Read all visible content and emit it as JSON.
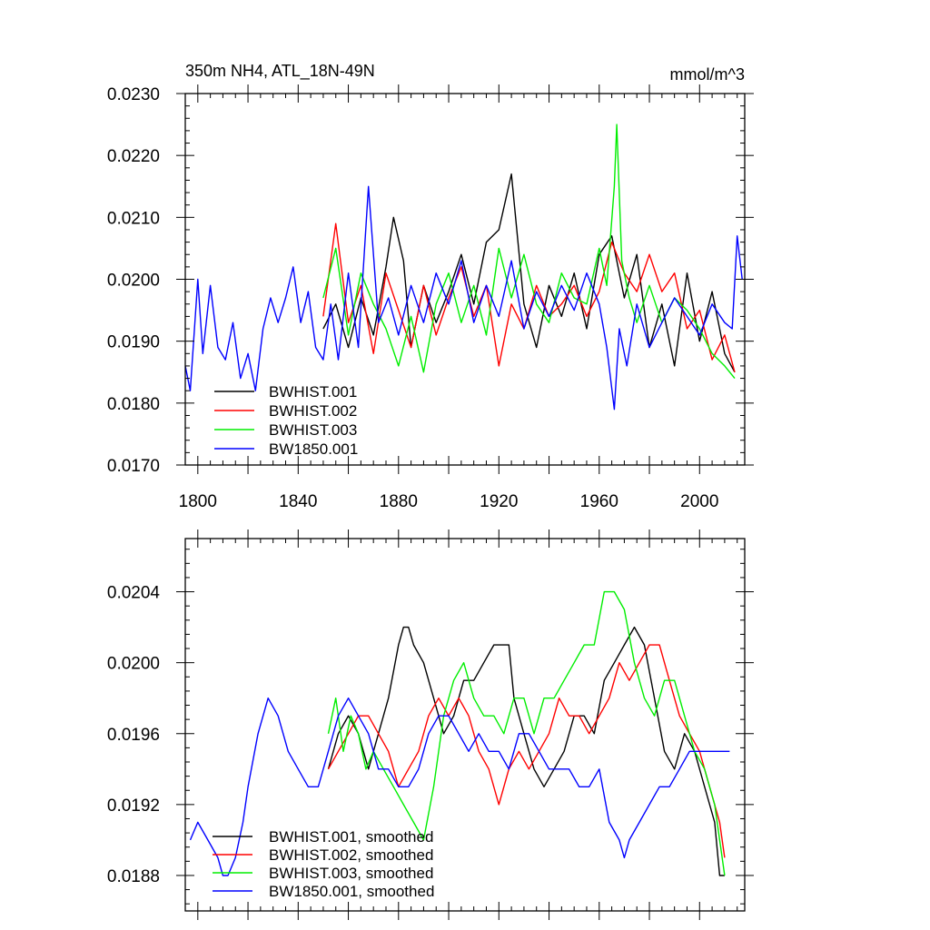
{
  "chart_data": [
    {
      "type": "line",
      "title_left": "350m NH4, ATL_18N-49N",
      "title_right": "mmol/m^3",
      "xlim": [
        1795,
        2018
      ],
      "ylim": [
        0.017,
        0.023
      ],
      "x_ticks": [
        1800,
        1840,
        1880,
        1920,
        1960,
        2000
      ],
      "y_ticks": [
        "0.0170",
        "0.0180",
        "0.0190",
        "0.0200",
        "0.0210",
        "0.0220",
        "0.0230"
      ],
      "legend_position": "bottom-left",
      "series": [
        {
          "name": "BWHIST.001",
          "color": "#000000",
          "x": [
            1850,
            1855,
            1860,
            1865,
            1870,
            1875,
            1878,
            1882,
            1885,
            1890,
            1895,
            1900,
            1905,
            1910,
            1915,
            1920,
            1925,
            1930,
            1935,
            1940,
            1945,
            1950,
            1955,
            1960,
            1965,
            1970,
            1975,
            1980,
            1985,
            1990,
            1995,
            2000,
            2005,
            2010,
            2014
          ],
          "y": [
            0.0192,
            0.0196,
            0.0189,
            0.0197,
            0.0191,
            0.0202,
            0.021,
            0.0203,
            0.0189,
            0.0199,
            0.0193,
            0.0198,
            0.0204,
            0.0196,
            0.0206,
            0.0208,
            0.0217,
            0.0196,
            0.0189,
            0.0199,
            0.0194,
            0.0201,
            0.0192,
            0.0204,
            0.0207,
            0.0197,
            0.0204,
            0.0189,
            0.0196,
            0.0186,
            0.0201,
            0.019,
            0.0198,
            0.0188,
            0.0185
          ]
        },
        {
          "name": "BWHIST.002",
          "color": "#ff0000",
          "x": [
            1850,
            1855,
            1860,
            1865,
            1870,
            1875,
            1880,
            1885,
            1890,
            1895,
            1900,
            1905,
            1910,
            1915,
            1920,
            1925,
            1930,
            1935,
            1940,
            1945,
            1950,
            1955,
            1960,
            1965,
            1970,
            1975,
            1980,
            1985,
            1990,
            1995,
            2000,
            2005,
            2010,
            2014
          ],
          "y": [
            0.0194,
            0.0209,
            0.0193,
            0.0199,
            0.0188,
            0.0201,
            0.0195,
            0.0189,
            0.0199,
            0.0191,
            0.0197,
            0.0202,
            0.0194,
            0.0199,
            0.0186,
            0.0196,
            0.0192,
            0.0199,
            0.0194,
            0.0196,
            0.0199,
            0.0194,
            0.0198,
            0.0206,
            0.0201,
            0.0198,
            0.0204,
            0.0198,
            0.0201,
            0.0192,
            0.0195,
            0.0187,
            0.0191,
            0.0185
          ]
        },
        {
          "name": "BWHIST.003",
          "color": "#00ee00",
          "x": [
            1850,
            1855,
            1860,
            1865,
            1870,
            1875,
            1880,
            1885,
            1890,
            1895,
            1900,
            1905,
            1910,
            1915,
            1920,
            1925,
            1930,
            1935,
            1940,
            1945,
            1950,
            1955,
            1960,
            1963,
            1966,
            1967,
            1969,
            1972,
            1975,
            1980,
            1985,
            1990,
            1995,
            2000,
            2005,
            2010,
            2014
          ],
          "y": [
            0.0197,
            0.0205,
            0.0191,
            0.0201,
            0.0196,
            0.0192,
            0.0186,
            0.0194,
            0.0185,
            0.0196,
            0.0201,
            0.0193,
            0.0199,
            0.0191,
            0.0205,
            0.0197,
            0.0204,
            0.0196,
            0.0193,
            0.0201,
            0.0197,
            0.0196,
            0.0205,
            0.0199,
            0.0215,
            0.0225,
            0.0203,
            0.0197,
            0.0193,
            0.0199,
            0.0193,
            0.0197,
            0.0195,
            0.0192,
            0.0188,
            0.0186,
            0.0184
          ]
        },
        {
          "name": "BW1850.001",
          "color": "#0000ff",
          "x": [
            1795,
            1797,
            1800,
            1802,
            1805,
            1808,
            1811,
            1814,
            1817,
            1820,
            1823,
            1826,
            1829,
            1832,
            1835,
            1838,
            1841,
            1844,
            1847,
            1850,
            1853,
            1856,
            1860,
            1864,
            1868,
            1872,
            1876,
            1880,
            1885,
            1890,
            1895,
            1900,
            1905,
            1910,
            1915,
            1920,
            1925,
            1930,
            1935,
            1940,
            1945,
            1950,
            1955,
            1960,
            1963,
            1966,
            1968,
            1971,
            1975,
            1980,
            1985,
            1990,
            1995,
            2000,
            2005,
            2010,
            2013,
            2015,
            2017
          ],
          "y": [
            0.0186,
            0.0182,
            0.02,
            0.0188,
            0.0199,
            0.0189,
            0.0187,
            0.0193,
            0.0184,
            0.0188,
            0.0182,
            0.0192,
            0.0197,
            0.0193,
            0.0197,
            0.0202,
            0.0193,
            0.0198,
            0.0189,
            0.0187,
            0.0196,
            0.0187,
            0.0201,
            0.0189,
            0.0215,
            0.0193,
            0.0197,
            0.0191,
            0.0199,
            0.0193,
            0.0201,
            0.0196,
            0.0203,
            0.0193,
            0.0199,
            0.0194,
            0.0203,
            0.0192,
            0.0198,
            0.0194,
            0.0199,
            0.0195,
            0.0201,
            0.0196,
            0.0189,
            0.0179,
            0.0192,
            0.0186,
            0.0196,
            0.0189,
            0.0193,
            0.0197,
            0.0194,
            0.0191,
            0.0196,
            0.0193,
            0.0192,
            0.0207,
            0.02
          ]
        }
      ]
    },
    {
      "type": "line",
      "xlim": [
        1795,
        2018
      ],
      "ylim": [
        0.0186,
        0.0207
      ],
      "y_ticks": [
        "0.0188",
        "0.0192",
        "0.0196",
        "0.0200",
        "0.0204"
      ],
      "legend_position": "bottom-left",
      "series": [
        {
          "name": "BWHIST.001, smoothed",
          "color": "#000000",
          "x": [
            1852,
            1856,
            1860,
            1864,
            1868,
            1872,
            1876,
            1880,
            1882,
            1884,
            1886,
            1890,
            1894,
            1898,
            1902,
            1906,
            1910,
            1914,
            1918,
            1920,
            1924,
            1926,
            1930,
            1934,
            1938,
            1942,
            1946,
            1950,
            1954,
            1958,
            1962,
            1966,
            1970,
            1974,
            1978,
            1982,
            1986,
            1990,
            1994,
            1998,
            2002,
            2006,
            2008,
            2010
          ],
          "y": [
            0.0194,
            0.0196,
            0.0197,
            0.0196,
            0.0194,
            0.0196,
            0.0198,
            0.0201,
            0.0202,
            0.0202,
            0.0201,
            0.02,
            0.0198,
            0.0196,
            0.0197,
            0.0199,
            0.0199,
            0.02,
            0.0201,
            0.0201,
            0.0201,
            0.0198,
            0.0196,
            0.0194,
            0.0193,
            0.0194,
            0.0195,
            0.0197,
            0.0197,
            0.0196,
            0.0199,
            0.02,
            0.0201,
            0.0202,
            0.0201,
            0.0198,
            0.0195,
            0.0194,
            0.0196,
            0.0195,
            0.0193,
            0.0191,
            0.0188,
            0.0188
          ]
        },
        {
          "name": "BWHIST.002, smoothed",
          "color": "#ff0000",
          "x": [
            1852,
            1856,
            1860,
            1864,
            1868,
            1872,
            1876,
            1880,
            1884,
            1888,
            1892,
            1896,
            1900,
            1904,
            1908,
            1912,
            1916,
            1920,
            1924,
            1928,
            1932,
            1936,
            1940,
            1944,
            1948,
            1952,
            1956,
            1960,
            1964,
            1968,
            1972,
            1976,
            1980,
            1984,
            1988,
            1992,
            1996,
            2000,
            2004,
            2008,
            2010
          ],
          "y": [
            0.0194,
            0.0195,
            0.0196,
            0.0197,
            0.0197,
            0.0196,
            0.0195,
            0.0193,
            0.0194,
            0.0195,
            0.0197,
            0.0198,
            0.0197,
            0.0198,
            0.0197,
            0.0195,
            0.0194,
            0.0192,
            0.0194,
            0.0195,
            0.0194,
            0.0195,
            0.0196,
            0.0198,
            0.0197,
            0.0197,
            0.0196,
            0.0197,
            0.0198,
            0.02,
            0.0199,
            0.02,
            0.0201,
            0.0201,
            0.0199,
            0.0197,
            0.0196,
            0.0195,
            0.0193,
            0.0191,
            0.0189
          ]
        },
        {
          "name": "BWHIST.003, smoothed",
          "color": "#00ee00",
          "x": [
            1852,
            1855,
            1858,
            1861,
            1864,
            1867,
            1870,
            1874,
            1878,
            1882,
            1886,
            1890,
            1894,
            1898,
            1902,
            1906,
            1910,
            1914,
            1918,
            1922,
            1926,
            1930,
            1934,
            1938,
            1942,
            1946,
            1950,
            1954,
            1958,
            1962,
            1966,
            1970,
            1974,
            1978,
            1982,
            1986,
            1990,
            1994,
            1998,
            2002,
            2006,
            2008,
            2010
          ],
          "y": [
            0.0196,
            0.0198,
            0.0195,
            0.0197,
            0.0196,
            0.0194,
            0.0195,
            0.0194,
            0.0193,
            0.0192,
            0.0191,
            0.019,
            0.0193,
            0.0197,
            0.0199,
            0.02,
            0.0198,
            0.0197,
            0.0197,
            0.0196,
            0.0198,
            0.0198,
            0.0196,
            0.0198,
            0.0198,
            0.0199,
            0.02,
            0.0201,
            0.0201,
            0.0204,
            0.0204,
            0.0203,
            0.02,
            0.0198,
            0.0197,
            0.0199,
            0.0199,
            0.0197,
            0.0195,
            0.0194,
            0.0192,
            0.019,
            0.0188
          ]
        },
        {
          "name": "BW1850.001, smoothed",
          "color": "#0000ff",
          "x": [
            1797,
            1800,
            1804,
            1808,
            1810,
            1812,
            1815,
            1818,
            1820,
            1824,
            1828,
            1832,
            1836,
            1840,
            1844,
            1848,
            1852,
            1856,
            1860,
            1864,
            1868,
            1872,
            1876,
            1880,
            1884,
            1888,
            1892,
            1896,
            1900,
            1904,
            1908,
            1912,
            1916,
            1920,
            1924,
            1928,
            1932,
            1936,
            1940,
            1944,
            1948,
            1952,
            1956,
            1960,
            1964,
            1968,
            1970,
            1972,
            1976,
            1980,
            1984,
            1988,
            1992,
            1996,
            2000,
            2004,
            2008,
            2012
          ],
          "y": [
            0.019,
            0.0191,
            0.019,
            0.0189,
            0.0188,
            0.0188,
            0.0189,
            0.0191,
            0.0193,
            0.0196,
            0.0198,
            0.0197,
            0.0195,
            0.0194,
            0.0193,
            0.0193,
            0.0195,
            0.0197,
            0.0198,
            0.0197,
            0.0196,
            0.0194,
            0.0194,
            0.0193,
            0.0193,
            0.0194,
            0.0196,
            0.0197,
            0.0197,
            0.0196,
            0.0195,
            0.0196,
            0.0195,
            0.0195,
            0.0194,
            0.0196,
            0.0196,
            0.0195,
            0.0194,
            0.0194,
            0.0194,
            0.0193,
            0.0193,
            0.0194,
            0.0191,
            0.019,
            0.0189,
            0.019,
            0.0191,
            0.0192,
            0.0193,
            0.0193,
            0.0194,
            0.0195,
            0.0195,
            0.0195,
            0.0195,
            0.0195
          ]
        }
      ]
    }
  ]
}
